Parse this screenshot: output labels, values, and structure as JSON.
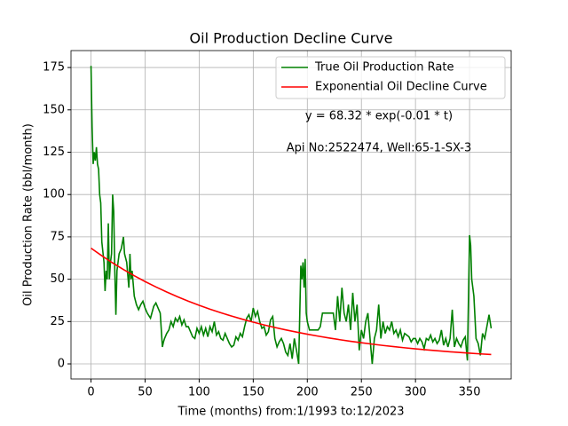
{
  "chart_data": {
    "type": "line",
    "title": "Oil Production Decline Curve",
    "xlabel": "Time (months) from:1/1993 to:12/2023",
    "ylabel": "Oil Production Rate (bbl/month)",
    "annotations": [
      "y = 68.32 * exp(-0.01 * t)",
      "Api No:2522474, Well:65-1-SX-3"
    ],
    "xlim": [
      -18.5,
      388.5
    ],
    "ylim": [
      -8.9,
      185
    ],
    "xticks": [
      0,
      50,
      100,
      150,
      200,
      250,
      300,
      350
    ],
    "yticks": [
      0,
      25,
      50,
      75,
      100,
      125,
      150,
      175
    ],
    "grid": true,
    "legend": "upper right",
    "series": [
      {
        "name": "True Oil Production Rate",
        "color": "#008000",
        "x": [
          0,
          1,
          2,
          3,
          4,
          5,
          6,
          7,
          8,
          9,
          10,
          12,
          13,
          14,
          15,
          16,
          17,
          18,
          19,
          20,
          21,
          22,
          23,
          24,
          26,
          28,
          30,
          31,
          33,
          35,
          36,
          37,
          38,
          40,
          42,
          44,
          46,
          48,
          50,
          52,
          55,
          58,
          60,
          62,
          64,
          65,
          66,
          67,
          68,
          70,
          72,
          74,
          76,
          78,
          80,
          82,
          84,
          86,
          88,
          90,
          92,
          94,
          96,
          98,
          100,
          102,
          104,
          106,
          108,
          110,
          112,
          114,
          116,
          118,
          120,
          122,
          124,
          126,
          128,
          130,
          132,
          134,
          136,
          138,
          140,
          142,
          144,
          146,
          148,
          150,
          152,
          154,
          156,
          158,
          160,
          162,
          164,
          166,
          168,
          170,
          172,
          174,
          176,
          178,
          180,
          182,
          184,
          186,
          188,
          190,
          192,
          194,
          195,
          196,
          197,
          198,
          199,
          200,
          202,
          204,
          210,
          212,
          214,
          216,
          222,
          224,
          226,
          228,
          230,
          232,
          234,
          236,
          238,
          240,
          242,
          244,
          246,
          248,
          250,
          252,
          254,
          256,
          258,
          260,
          262,
          264,
          266,
          268,
          270,
          272,
          274,
          276,
          278,
          280,
          282,
          284,
          286,
          288,
          290,
          292,
          294,
          296,
          298,
          300,
          302,
          304,
          306,
          308,
          310,
          312,
          314,
          316,
          318,
          320,
          322,
          324,
          326,
          328,
          330,
          332,
          334,
          336,
          338,
          340,
          342,
          344,
          346,
          348,
          350,
          351,
          352,
          354,
          356,
          358,
          360,
          362,
          364,
          366,
          368,
          370
        ],
        "values": [
          176,
          140,
          118,
          125,
          120,
          128,
          118,
          115,
          100,
          95,
          72,
          60,
          43,
          55,
          50,
          83,
          50,
          60,
          65,
          100,
          90,
          55,
          29,
          55,
          65,
          68,
          75,
          65,
          60,
          45,
          65,
          50,
          55,
          40,
          35,
          32,
          35,
          37,
          33,
          30,
          27,
          34,
          36,
          33,
          30,
          20,
          10,
          13,
          15,
          18,
          20,
          25,
          22,
          27,
          25,
          28,
          23,
          26,
          22,
          22,
          19,
          16,
          15,
          21,
          18,
          22,
          17,
          21,
          16,
          22,
          19,
          25,
          17,
          19,
          15,
          14,
          18,
          15,
          12,
          10,
          11,
          16,
          14,
          18,
          16,
          22,
          27,
          29,
          25,
          33,
          28,
          31,
          25,
          21,
          22,
          17,
          19,
          26,
          28,
          15,
          10,
          13,
          15,
          12,
          7,
          5,
          12,
          3,
          15,
          8,
          0,
          58,
          50,
          60,
          45,
          62,
          30,
          25,
          20,
          20,
          20,
          22,
          30,
          30,
          30,
          30,
          20,
          40,
          25,
          45,
          30,
          25,
          35,
          20,
          42,
          25,
          35,
          8,
          20,
          15,
          25,
          30,
          15,
          0,
          15,
          20,
          35,
          15,
          25,
          18,
          22,
          20,
          25,
          18,
          20,
          16,
          20,
          14,
          18,
          17,
          16,
          13,
          15,
          15,
          12,
          15,
          13,
          9,
          15,
          14,
          17,
          13,
          15,
          12,
          14,
          20,
          11,
          15,
          10,
          15,
          32,
          10,
          15,
          12,
          10,
          14,
          16,
          2,
          76,
          70,
          50,
          40,
          15,
          12,
          5,
          18,
          15,
          22,
          29,
          21
        ]
      },
      {
        "name": "Exponential Oil Decline Curve",
        "color": "#ff0000",
        "x": [
          0,
          10,
          20,
          30,
          40,
          50,
          60,
          70,
          80,
          90,
          100,
          110,
          120,
          130,
          140,
          150,
          160,
          170,
          180,
          190,
          200,
          210,
          220,
          230,
          240,
          250,
          260,
          270,
          280,
          290,
          300,
          310,
          320,
          330,
          340,
          350,
          360,
          370
        ],
        "values": [
          68.32,
          63.83,
          59.63,
          55.71,
          52.05,
          48.62,
          45.43,
          42.44,
          39.65,
          37.04,
          34.61,
          32.33,
          30.21,
          28.22,
          26.37,
          24.63,
          23.01,
          21.5,
          20.09,
          18.77,
          17.53,
          16.38,
          15.3,
          14.3,
          13.36,
          12.48,
          11.66,
          10.89,
          10.18,
          9.51,
          8.88,
          8.3,
          7.75,
          7.24,
          6.77,
          6.32,
          5.91,
          5.52
        ]
      }
    ]
  }
}
